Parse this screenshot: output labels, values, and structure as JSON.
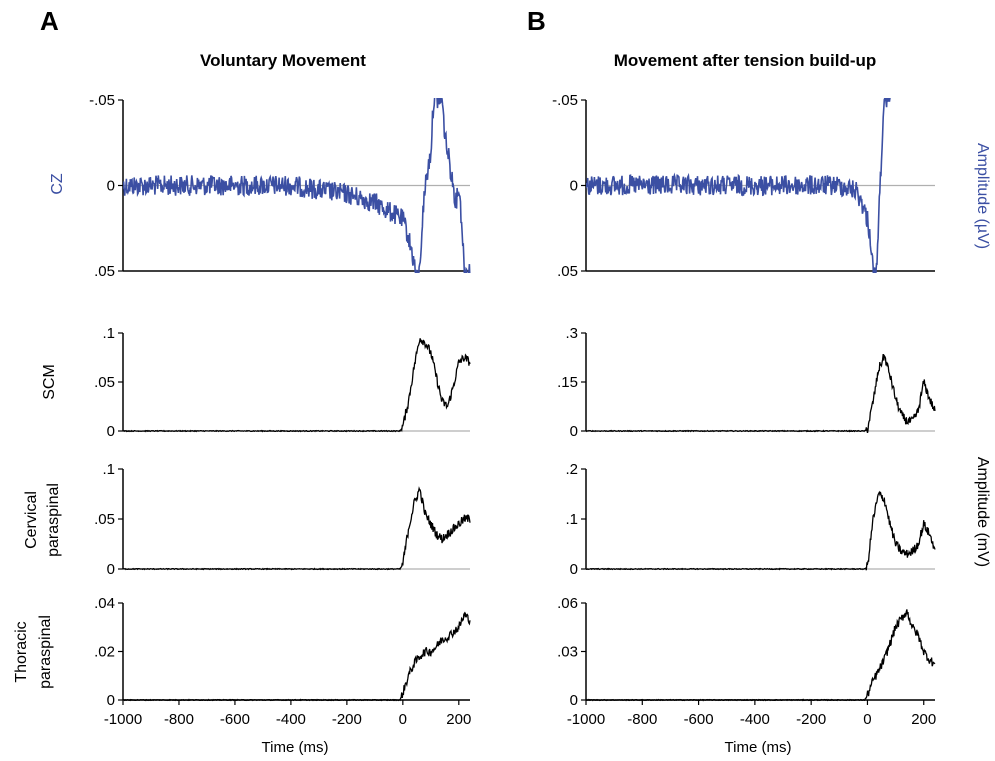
{
  "figure": {
    "panel_a_letter": "A",
    "panel_b_letter": "B",
    "panel_a_title": "Voluntary Movement",
    "panel_b_title": "Movement after tension build-up",
    "right_label_top": "Amplitude (µV)",
    "right_label_bottom": "Amplitude (mV)",
    "row_labels": {
      "cz": "CZ",
      "scm": "SCM",
      "cervical_1": "Cervical",
      "cervical_2": "paraspinal",
      "thoracic_1": "Thoracic",
      "thoracic_2": "paraspinal"
    },
    "xlabel": "Time (ms)",
    "colors": {
      "eeg": "#3b4fa3",
      "emg": "#000000",
      "baseline": "#b0b0b0"
    }
  },
  "chart_data": [
    {
      "type": "line",
      "id": "A_cz",
      "ylabel": "CZ",
      "y_inverted": true,
      "y_ticks": [
        "-.05",
        "0",
        ".05"
      ],
      "ylim": [
        -0.05,
        0.05
      ],
      "x_ticks": [],
      "xlim": [
        -1000,
        240
      ],
      "series": [
        {
          "color": "#3b4fa3",
          "x": [
            -1000,
            -800,
            -600,
            -400,
            -200,
            -100,
            0,
            20,
            40,
            50,
            60,
            70,
            80,
            90,
            100,
            110,
            120,
            130,
            140,
            150,
            160,
            170,
            180,
            190,
            200,
            210,
            220,
            230,
            240
          ],
          "y": [
            0,
            0,
            0,
            0,
            0.005,
            0.01,
            0.02,
            0.03,
            0.045,
            0.055,
            0.05,
            0.02,
            0,
            -0.01,
            -0.02,
            -0.05,
            -0.05,
            -0.05,
            -0.05,
            -0.03,
            -0.02,
            -0.01,
            0,
            0.01,
            0,
            0.02,
            0.05,
            0.05,
            0.05
          ]
        }
      ]
    },
    {
      "type": "line",
      "id": "B_cz",
      "y_inverted": true,
      "y_ticks": [
        "-.05",
        "0",
        ".05"
      ],
      "ylim": [
        -0.05,
        0.05
      ],
      "x_ticks": [],
      "xlim": [
        -1000,
        240
      ],
      "series": [
        {
          "color": "#3b4fa3",
          "x": [
            -1000,
            -800,
            -600,
            -400,
            -200,
            -100,
            -40,
            -20,
            0,
            10,
            20,
            30,
            40,
            50,
            60,
            70,
            80,
            100,
            200,
            240
          ],
          "y": [
            0,
            0,
            0,
            0,
            0,
            0,
            0.003,
            0.01,
            0.02,
            0.03,
            0.05,
            0.055,
            0.02,
            -0.02,
            -0.045,
            -0.05,
            -0.055,
            -0.06,
            -0.06,
            -0.06
          ]
        }
      ]
    },
    {
      "type": "line",
      "id": "A_scm",
      "ylabel": "SCM",
      "y_ticks": [
        ".1",
        ".05",
        "0"
      ],
      "y_tick_values": [
        0.1,
        0.05,
        0
      ],
      "ylim": [
        0,
        0.1
      ],
      "x_ticks": [],
      "xlim": [
        -1000,
        240
      ],
      "series": [
        {
          "color": "#000000",
          "x": [
            -1000,
            -800,
            -600,
            -400,
            -200,
            -10,
            0,
            20,
            40,
            60,
            80,
            100,
            120,
            140,
            160,
            180,
            200,
            220,
            240
          ],
          "y": [
            0,
            0,
            0,
            0,
            0,
            0,
            0.005,
            0.03,
            0.065,
            0.095,
            0.09,
            0.08,
            0.055,
            0.03,
            0.025,
            0.045,
            0.07,
            0.075,
            0.07
          ]
        }
      ]
    },
    {
      "type": "line",
      "id": "B_scm",
      "y_ticks": [
        ".3",
        ".15",
        "0"
      ],
      "y_tick_values": [
        0.3,
        0.15,
        0
      ],
      "ylim": [
        0,
        0.3
      ],
      "x_ticks": [],
      "xlim": [
        -1000,
        240
      ],
      "series": [
        {
          "color": "#000000",
          "x": [
            -1000,
            -800,
            -600,
            -400,
            -200,
            -10,
            0,
            20,
            40,
            60,
            80,
            100,
            120,
            140,
            160,
            180,
            200,
            220,
            240
          ],
          "y": [
            0,
            0,
            0,
            0,
            0,
            0,
            0.005,
            0.09,
            0.19,
            0.23,
            0.17,
            0.1,
            0.05,
            0.03,
            0.03,
            0.06,
            0.15,
            0.1,
            0.06
          ]
        }
      ]
    },
    {
      "type": "line",
      "id": "A_cervical",
      "ylabel": "Cervical paraspinal",
      "y_ticks": [
        ".1",
        ".05",
        "0"
      ],
      "y_tick_values": [
        0.1,
        0.05,
        0
      ],
      "ylim": [
        0,
        0.1
      ],
      "x_ticks": [],
      "xlim": [
        -1000,
        240
      ],
      "series": [
        {
          "color": "#000000",
          "x": [
            -1000,
            -800,
            -600,
            -400,
            -200,
            -10,
            0,
            20,
            40,
            60,
            80,
            100,
            120,
            140,
            160,
            180,
            200,
            220,
            240
          ],
          "y": [
            0,
            0,
            0,
            0,
            0,
            0,
            0.005,
            0.04,
            0.065,
            0.08,
            0.055,
            0.045,
            0.035,
            0.03,
            0.035,
            0.04,
            0.045,
            0.05,
            0.05
          ]
        }
      ]
    },
    {
      "type": "line",
      "id": "B_cervical",
      "y_ticks": [
        ".2",
        ".1",
        "0"
      ],
      "y_tick_values": [
        0.2,
        0.1,
        0
      ],
      "ylim": [
        0,
        0.2
      ],
      "x_ticks": [],
      "xlim": [
        -1000,
        240
      ],
      "series": [
        {
          "color": "#000000",
          "x": [
            -1000,
            -800,
            -600,
            -400,
            -200,
            -10,
            0,
            20,
            40,
            60,
            80,
            100,
            120,
            140,
            160,
            180,
            200,
            220,
            240
          ],
          "y": [
            0,
            0,
            0,
            0,
            0,
            0,
            0.005,
            0.1,
            0.15,
            0.14,
            0.09,
            0.05,
            0.035,
            0.03,
            0.035,
            0.05,
            0.09,
            0.07,
            0.04
          ]
        }
      ]
    },
    {
      "type": "line",
      "id": "A_thoracic",
      "ylabel": "Thoracic paraspinal",
      "y_ticks": [
        ".04",
        ".02",
        "0"
      ],
      "y_tick_values": [
        0.04,
        0.02,
        0
      ],
      "ylim": [
        0,
        0.04
      ],
      "x_ticks": [
        "-1000",
        "-800",
        "-600",
        "-400",
        "-200",
        "0",
        "200"
      ],
      "x_tick_values": [
        -1000,
        -800,
        -600,
        -400,
        -200,
        0,
        200
      ],
      "xlim": [
        -1000,
        240
      ],
      "series": [
        {
          "color": "#000000",
          "x": [
            -1000,
            -800,
            -600,
            -400,
            -200,
            -10,
            0,
            20,
            40,
            60,
            80,
            100,
            120,
            140,
            160,
            180,
            200,
            220,
            240
          ],
          "y": [
            0,
            0,
            0,
            0,
            0,
            0,
            0.003,
            0.01,
            0.015,
            0.018,
            0.02,
            0.02,
            0.022,
            0.025,
            0.026,
            0.028,
            0.03,
            0.035,
            0.033
          ]
        }
      ]
    },
    {
      "type": "line",
      "id": "B_thoracic",
      "y_ticks": [
        ".06",
        ".03",
        "0"
      ],
      "y_tick_values": [
        0.06,
        0.03,
        0
      ],
      "ylim": [
        0,
        0.06
      ],
      "x_ticks": [
        "-1000",
        "-800",
        "-600",
        "-400",
        "-200",
        "0",
        "200"
      ],
      "x_tick_values": [
        -1000,
        -800,
        -600,
        -400,
        -200,
        0,
        200
      ],
      "xlim": [
        -1000,
        240
      ],
      "series": [
        {
          "color": "#000000",
          "x": [
            -1000,
            -800,
            -600,
            -400,
            -200,
            -10,
            0,
            20,
            40,
            60,
            80,
            100,
            120,
            140,
            160,
            180,
            200,
            220,
            240
          ],
          "y": [
            0,
            0,
            0,
            0,
            0,
            0,
            0.003,
            0.012,
            0.018,
            0.025,
            0.035,
            0.045,
            0.05,
            0.055,
            0.045,
            0.04,
            0.03,
            0.025,
            0.022
          ]
        }
      ]
    }
  ]
}
